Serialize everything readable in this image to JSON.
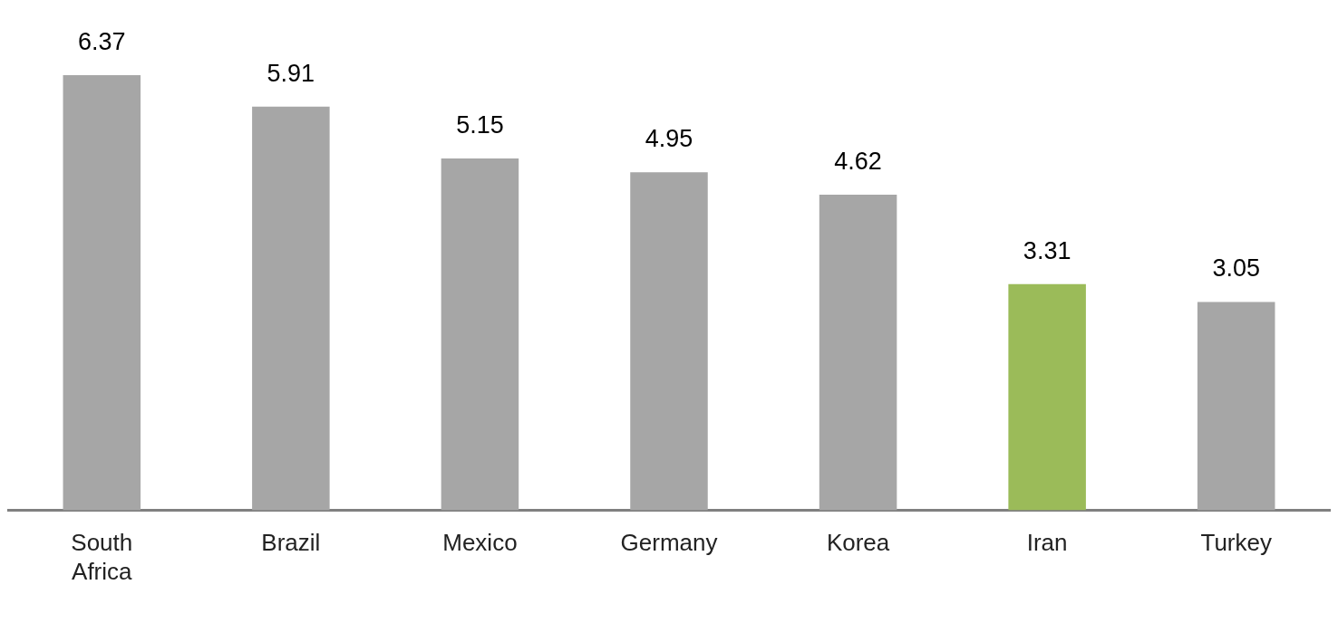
{
  "chart_data": {
    "type": "bar",
    "categories": [
      "South Africa",
      "Brazil",
      "Mexico",
      "Germany",
      "Korea",
      "Iran",
      "Turkey"
    ],
    "values": [
      6.37,
      5.91,
      5.15,
      4.95,
      4.62,
      3.31,
      3.05
    ],
    "colors": [
      "#a6a6a6",
      "#a6a6a6",
      "#a6a6a6",
      "#a6a6a6",
      "#a6a6a6",
      "#9bbb59",
      "#a6a6a6"
    ],
    "data_labels": true
  }
}
